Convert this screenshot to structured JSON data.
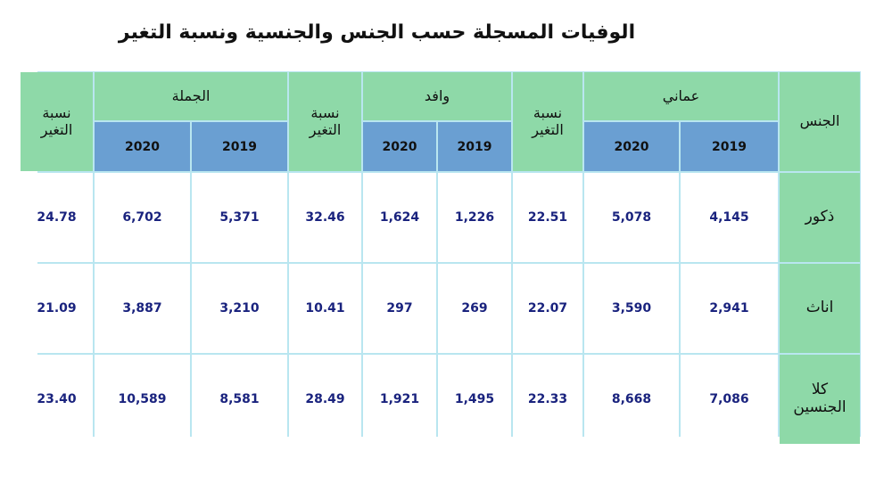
{
  "title": "الوفيات المسجلة حسب الجنس والجنسية ونسبة التغير",
  "table": {
    "header": {
      "gender": "الجنس",
      "groups": [
        {
          "name": "عماني",
          "years": [
            "2019",
            "2020"
          ],
          "change": "نسبة التغير"
        },
        {
          "name": "وافد",
          "years": [
            "2019",
            "2020"
          ],
          "change": "نسبة التغير"
        },
        {
          "name": "الجملة",
          "years": [
            "2019",
            "2020"
          ],
          "change": "نسبة التغير"
        }
      ]
    },
    "rows": [
      {
        "label": "ذكور",
        "cells": [
          "4,145",
          "5,078",
          "22.51",
          "1,226",
          "1,624",
          "32.46",
          "5,371",
          "6,702",
          "24.78"
        ]
      },
      {
        "label": "اناث",
        "cells": [
          "2,941",
          "3,590",
          "22.07",
          "269",
          "297",
          "10.41",
          "3,210",
          "3,887",
          "21.09"
        ]
      },
      {
        "label": "كلا الجنسين",
        "cells": [
          "7,086",
          "8,668",
          "22.33",
          "1,495",
          "1,921",
          "28.49",
          "8,581",
          "10,589",
          "23.40"
        ]
      }
    ]
  }
}
